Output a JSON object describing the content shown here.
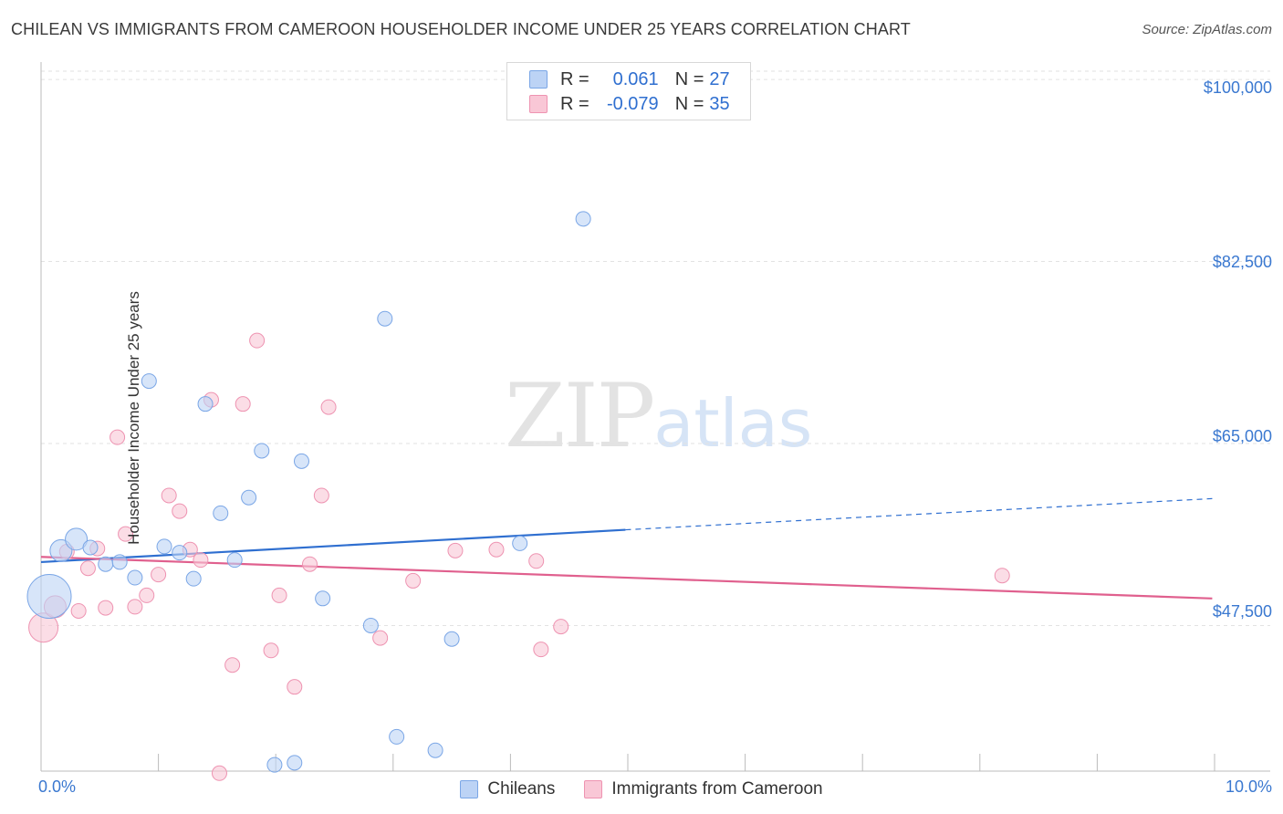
{
  "header": {
    "title": "CHILEAN VS IMMIGRANTS FROM CAMEROON HOUSEHOLDER INCOME UNDER 25 YEARS CORRELATION CHART",
    "source": "Source: ZipAtlas.com"
  },
  "watermark": {
    "zip": "ZIP",
    "atlas": "atlas"
  },
  "legend": {
    "rows": [
      {
        "r_label": "R =",
        "r_value": "0.061",
        "n_label": "N =",
        "n_value": "27"
      },
      {
        "r_label": "R =",
        "r_value": "-0.079",
        "n_label": "N =",
        "n_value": "35"
      }
    ]
  },
  "bottom_legend": {
    "series1": "Chileans",
    "series2": "Immigrants from Cameroon"
  },
  "colors": {
    "blue_fill": "#bcd3f5",
    "blue_stroke": "#7aa6e6",
    "blue_line": "#2f6fd0",
    "pink_fill": "#f9c7d6",
    "pink_stroke": "#ee93b1",
    "pink_line": "#e0608e",
    "grid": "#e2e2e2",
    "axis_label": "#3a78d0"
  },
  "chart_data": {
    "type": "scatter",
    "title": "CHILEAN VS IMMIGRANTS FROM CAMEROON HOUSEHOLDER INCOME UNDER 25 YEARS CORRELATION CHART",
    "xlabel": "",
    "ylabel": "Householder Income Under 25 years",
    "xlim": [
      0,
      10
    ],
    "ylim": [
      33500,
      101500
    ],
    "x_tick_labels": [
      "0.0%",
      "10.0%"
    ],
    "y_ticks": [
      47500,
      65000,
      82500,
      100000
    ],
    "y_tick_labels": [
      "$47,500",
      "$65,000",
      "$82,500",
      "$100,000"
    ],
    "grid": true,
    "legend_position": "top-center",
    "series": [
      {
        "name": "Chileans",
        "R": 0.061,
        "N": 27,
        "trend": {
          "x0": 0.0,
          "y0": 53600,
          "x1": 4.98,
          "y1": 56700,
          "dash_to_x": 9.98,
          "dash_to_y": 59700
        },
        "points": [
          {
            "x": 0.07,
            "y": 50300,
            "s": 3
          },
          {
            "x": 0.17,
            "y": 54700,
            "s": 1.5
          },
          {
            "x": 0.3,
            "y": 55800,
            "s": 1.5
          },
          {
            "x": 0.42,
            "y": 55000,
            "s": 1
          },
          {
            "x": 0.55,
            "y": 53400,
            "s": 1
          },
          {
            "x": 0.67,
            "y": 53600,
            "s": 1
          },
          {
            "x": 0.8,
            "y": 52100,
            "s": 1
          },
          {
            "x": 0.92,
            "y": 71000,
            "s": 1
          },
          {
            "x": 1.05,
            "y": 55100,
            "s": 1
          },
          {
            "x": 1.18,
            "y": 54500,
            "s": 1
          },
          {
            "x": 1.3,
            "y": 52000,
            "s": 1
          },
          {
            "x": 1.4,
            "y": 68800,
            "s": 1
          },
          {
            "x": 1.53,
            "y": 58300,
            "s": 1
          },
          {
            "x": 1.65,
            "y": 53800,
            "s": 1
          },
          {
            "x": 1.77,
            "y": 59800,
            "s": 1
          },
          {
            "x": 1.88,
            "y": 64300,
            "s": 1
          },
          {
            "x": 1.99,
            "y": 34100,
            "s": 1
          },
          {
            "x": 2.16,
            "y": 34300,
            "s": 1
          },
          {
            "x": 2.22,
            "y": 63300,
            "s": 1
          },
          {
            "x": 2.4,
            "y": 50100,
            "s": 1
          },
          {
            "x": 2.93,
            "y": 77000,
            "s": 1
          },
          {
            "x": 2.81,
            "y": 47500,
            "s": 1
          },
          {
            "x": 3.03,
            "y": 36800,
            "s": 1
          },
          {
            "x": 3.36,
            "y": 35500,
            "s": 1
          },
          {
            "x": 3.5,
            "y": 46200,
            "s": 1
          },
          {
            "x": 4.08,
            "y": 55400,
            "s": 1
          },
          {
            "x": 4.62,
            "y": 86600,
            "s": 1
          }
        ]
      },
      {
        "name": "Immigrants from Cameroon",
        "R": -0.079,
        "N": 35,
        "trend": {
          "x0": 0.0,
          "y0": 54100,
          "x1": 9.98,
          "y1": 50100
        },
        "points": [
          {
            "x": 0.02,
            "y": 47300,
            "s": 2
          },
          {
            "x": 0.12,
            "y": 49300,
            "s": 1.5
          },
          {
            "x": 0.22,
            "y": 54600,
            "s": 1
          },
          {
            "x": 0.32,
            "y": 48900,
            "s": 1
          },
          {
            "x": 0.4,
            "y": 53000,
            "s": 1
          },
          {
            "x": 0.48,
            "y": 54900,
            "s": 1
          },
          {
            "x": 0.55,
            "y": 49200,
            "s": 1
          },
          {
            "x": 0.65,
            "y": 65600,
            "s": 1
          },
          {
            "x": 0.72,
            "y": 56300,
            "s": 1
          },
          {
            "x": 0.8,
            "y": 49300,
            "s": 1
          },
          {
            "x": 0.9,
            "y": 50400,
            "s": 1
          },
          {
            "x": 1.0,
            "y": 52400,
            "s": 1
          },
          {
            "x": 1.09,
            "y": 60000,
            "s": 1
          },
          {
            "x": 1.18,
            "y": 58500,
            "s": 1
          },
          {
            "x": 1.27,
            "y": 54800,
            "s": 1
          },
          {
            "x": 1.36,
            "y": 53800,
            "s": 1
          },
          {
            "x": 1.45,
            "y": 69200,
            "s": 1
          },
          {
            "x": 1.52,
            "y": 33300,
            "s": 1
          },
          {
            "x": 1.63,
            "y": 43700,
            "s": 1
          },
          {
            "x": 1.72,
            "y": 68800,
            "s": 1
          },
          {
            "x": 1.84,
            "y": 74900,
            "s": 1
          },
          {
            "x": 1.96,
            "y": 45100,
            "s": 1
          },
          {
            "x": 2.03,
            "y": 50400,
            "s": 1
          },
          {
            "x": 2.16,
            "y": 41600,
            "s": 1
          },
          {
            "x": 2.29,
            "y": 53400,
            "s": 1
          },
          {
            "x": 2.39,
            "y": 60000,
            "s": 1
          },
          {
            "x": 2.45,
            "y": 68500,
            "s": 1
          },
          {
            "x": 2.89,
            "y": 46300,
            "s": 1
          },
          {
            "x": 3.17,
            "y": 51800,
            "s": 1
          },
          {
            "x": 3.53,
            "y": 54700,
            "s": 1
          },
          {
            "x": 3.88,
            "y": 54800,
            "s": 1
          },
          {
            "x": 4.22,
            "y": 53700,
            "s": 1
          },
          {
            "x": 4.26,
            "y": 45200,
            "s": 1
          },
          {
            "x": 4.43,
            "y": 47400,
            "s": 1
          },
          {
            "x": 8.19,
            "y": 52300,
            "s": 1
          }
        ]
      }
    ]
  }
}
